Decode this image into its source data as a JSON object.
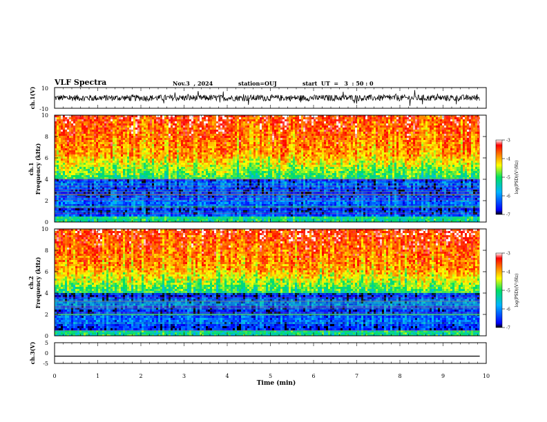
{
  "header": {
    "title": "VLF Spectra",
    "date": "Nov.3  , 2024",
    "station": "station=OUJ",
    "start": "start  UT  =   3  : 50 : 0"
  },
  "chart_data": [
    {
      "type": "line",
      "panel": "ch1-waveform",
      "ylabel": "ch.1(V)",
      "ylim": [
        -10,
        10
      ],
      "ytick_labels": [
        "10",
        "-10"
      ],
      "description_values": {
        "baseline": 0,
        "typical_amplitude": 3
      }
    },
    {
      "type": "heatmap",
      "panel": "ch1-spectrogram",
      "ylabel_line1": "ch.1",
      "ylabel_line2": "Frequency  (kHz)",
      "ylim": [
        0,
        10
      ],
      "ytick_labels": [
        "0",
        "2",
        "4",
        "6",
        "8",
        "10"
      ],
      "colorbar": {
        "label": "log(PSD)(V²/Hz)",
        "range": [
          -7,
          -3
        ],
        "tick_labels": [
          "-3",
          "-4",
          "-5",
          "-6",
          "-7"
        ]
      }
    },
    {
      "type": "heatmap",
      "panel": "ch2-spectrogram",
      "ylabel_line1": "ch.2",
      "ylabel_line2": "Frequency  (kHz)",
      "ylim": [
        0,
        10
      ],
      "ytick_labels": [
        "0",
        "2",
        "4",
        "6",
        "8",
        "10"
      ],
      "colorbar": {
        "label": "log(PSD)(V²/Hz)",
        "range": [
          -7,
          -3
        ],
        "tick_labels": [
          "-3",
          "-4",
          "-5",
          "-6",
          "-7"
        ]
      }
    },
    {
      "type": "line",
      "panel": "ch3-waveform",
      "ylabel": "ch.3(V)",
      "ylim": [
        -5,
        5
      ],
      "ytick_labels": [
        "5",
        "0",
        "-5"
      ],
      "x": [
        0,
        9.85
      ],
      "y": [
        -1.5,
        -1.5
      ]
    }
  ],
  "xaxis": {
    "label": "Time  (min)",
    "range": [
      0,
      10
    ],
    "tick_labels": [
      "0",
      "1",
      "2",
      "3",
      "4",
      "5",
      "6",
      "7",
      "8",
      "9",
      "10"
    ],
    "data_end": 9.85
  }
}
